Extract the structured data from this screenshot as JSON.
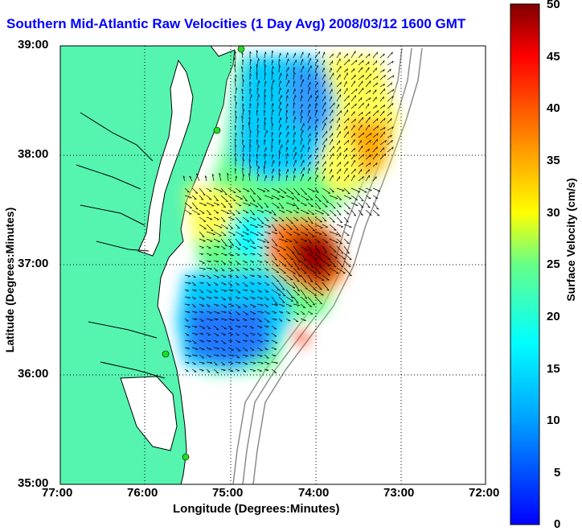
{
  "title": "Southern Mid-Atlantic Raw Velocities (1 Day Avg) 2008/03/12 1600 GMT",
  "axes": {
    "xlabel": "Longitude (Degrees:Minutes)",
    "ylabel": "Latitude (Degrees:Minutes)",
    "xticks": [
      "77:00",
      "76:00",
      "75:00",
      "74:00",
      "73:00",
      "72:00"
    ],
    "yticks": [
      "39:00",
      "38:00",
      "37:00",
      "36:00",
      "35:00"
    ],
    "xlim_deg_west": [
      77,
      72
    ],
    "ylim_deg_north": [
      35,
      39
    ],
    "grid": "dotted"
  },
  "colorbar": {
    "label": "Surface Velocity (cm/s)",
    "ticks": [
      "50",
      "45",
      "40",
      "35",
      "30",
      "25",
      "20",
      "15",
      "10",
      "5",
      "0"
    ],
    "min": 0,
    "max": 50,
    "colormap": "jet"
  },
  "colors": {
    "land": "#55f5b0",
    "water": "#ffffff",
    "coastline": "#000000",
    "bathymetry": "#8c8c8c",
    "station_marker": "#22dd22",
    "title": "#0000ff"
  },
  "stations_label": "green-markers",
  "velocity_regions": [
    {
      "name": "northern-blue-core",
      "speed_cm_s": 8
    },
    {
      "name": "central-slope-jet",
      "speed_cm_s": 45
    },
    {
      "name": "southern-blue-area",
      "speed_cm_s": 7
    },
    {
      "name": "southeast-edge",
      "speed_cm_s": 40
    }
  ]
}
